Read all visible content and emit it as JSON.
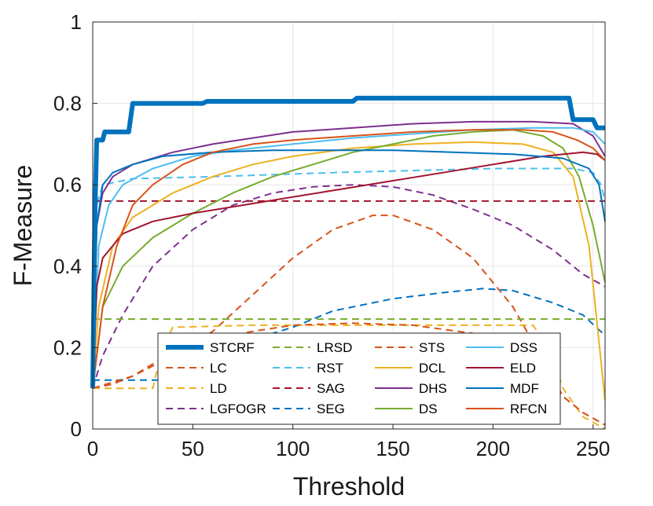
{
  "chart_data": {
    "type": "line",
    "title": "",
    "xlabel": "Threshold",
    "ylabel": "F-Measure",
    "xlim": [
      0,
      256
    ],
    "ylim": [
      0,
      1
    ],
    "grid": true,
    "legend_position": "bottom-center",
    "legend_columns": 4,
    "x_ticks": [
      "0",
      "50",
      "100",
      "150",
      "200",
      "250"
    ],
    "y_ticks": [
      "0",
      "0.2",
      "0.4",
      "0.6",
      "0.8",
      "1"
    ],
    "series": [
      {
        "name": "STCRF",
        "color": "#0072BD",
        "style": "solid",
        "width": 6,
        "points": [
          [
            0,
            0.1
          ],
          [
            1,
            0.5
          ],
          [
            2,
            0.71
          ],
          [
            5,
            0.71
          ],
          [
            6,
            0.73
          ],
          [
            18,
            0.73
          ],
          [
            20,
            0.8
          ],
          [
            55,
            0.8
          ],
          [
            57,
            0.805
          ],
          [
            130,
            0.805
          ],
          [
            132,
            0.813
          ],
          [
            238,
            0.813
          ],
          [
            240,
            0.76
          ],
          [
            250,
            0.76
          ],
          [
            252,
            0.74
          ],
          [
            256,
            0.74
          ]
        ]
      },
      {
        "name": "LC",
        "color": "#D95319",
        "style": "dashed",
        "width": 2,
        "points": [
          [
            0,
            0.1
          ],
          [
            10,
            0.11
          ],
          [
            20,
            0.13
          ],
          [
            40,
            0.18
          ],
          [
            60,
            0.24
          ],
          [
            80,
            0.33
          ],
          [
            100,
            0.42
          ],
          [
            120,
            0.49
          ],
          [
            140,
            0.525
          ],
          [
            150,
            0.525
          ],
          [
            170,
            0.49
          ],
          [
            190,
            0.42
          ],
          [
            210,
            0.3
          ],
          [
            225,
            0.17
          ],
          [
            235,
            0.08
          ],
          [
            245,
            0.04
          ],
          [
            256,
            0.01
          ]
        ]
      },
      {
        "name": "LD",
        "color": "#EDB120",
        "style": "dashed",
        "width": 2,
        "points": [
          [
            0,
            0.1
          ],
          [
            30,
            0.1
          ],
          [
            35,
            0.2
          ],
          [
            40,
            0.25
          ],
          [
            80,
            0.255
          ],
          [
            150,
            0.255
          ],
          [
            200,
            0.255
          ],
          [
            220,
            0.255
          ],
          [
            228,
            0.2
          ],
          [
            235,
            0.1
          ],
          [
            245,
            0.03
          ],
          [
            256,
            0.0
          ]
        ]
      },
      {
        "name": "LGFOGR",
        "color": "#7E2F8E",
        "style": "dashed",
        "width": 2,
        "points": [
          [
            0,
            0.1
          ],
          [
            5,
            0.18
          ],
          [
            15,
            0.28
          ],
          [
            30,
            0.4
          ],
          [
            50,
            0.49
          ],
          [
            70,
            0.55
          ],
          [
            90,
            0.58
          ],
          [
            110,
            0.595
          ],
          [
            130,
            0.6
          ],
          [
            150,
            0.595
          ],
          [
            170,
            0.575
          ],
          [
            190,
            0.54
          ],
          [
            210,
            0.5
          ],
          [
            230,
            0.44
          ],
          [
            245,
            0.38
          ],
          [
            256,
            0.35
          ]
        ]
      },
      {
        "name": "LRSD",
        "color": "#77AC30",
        "style": "dashed",
        "width": 2,
        "points": [
          [
            0,
            0.27
          ],
          [
            256,
            0.27
          ]
        ]
      },
      {
        "name": "RST",
        "color": "#4DBEEE",
        "style": "dashed",
        "width": 2,
        "points": [
          [
            0,
            0.12
          ],
          [
            2,
            0.55
          ],
          [
            5,
            0.6
          ],
          [
            20,
            0.615
          ],
          [
            60,
            0.62
          ],
          [
            120,
            0.63
          ],
          [
            200,
            0.64
          ],
          [
            240,
            0.64
          ],
          [
            250,
            0.63
          ],
          [
            254,
            0.6
          ],
          [
            256,
            0.56
          ]
        ]
      },
      {
        "name": "SAG",
        "color": "#A2142F",
        "style": "dashed",
        "width": 2,
        "points": [
          [
            0,
            0.56
          ],
          [
            256,
            0.56
          ]
        ]
      },
      {
        "name": "SEG",
        "color": "#0072BD",
        "style": "dashed",
        "width": 2,
        "points": [
          [
            0,
            0.12
          ],
          [
            40,
            0.12
          ],
          [
            60,
            0.18
          ],
          [
            80,
            0.22
          ],
          [
            100,
            0.25
          ],
          [
            120,
            0.29
          ],
          [
            150,
            0.32
          ],
          [
            175,
            0.335
          ],
          [
            195,
            0.345
          ],
          [
            210,
            0.34
          ],
          [
            230,
            0.31
          ],
          [
            245,
            0.28
          ],
          [
            256,
            0.23
          ]
        ]
      },
      {
        "name": "STS",
        "color": "#D95319",
        "style": "dashed",
        "width": 2,
        "points": [
          [
            0,
            0.1
          ],
          [
            20,
            0.13
          ],
          [
            40,
            0.19
          ],
          [
            60,
            0.22
          ],
          [
            80,
            0.24
          ],
          [
            100,
            0.255
          ],
          [
            130,
            0.26
          ],
          [
            160,
            0.255
          ],
          [
            190,
            0.235
          ],
          [
            210,
            0.2
          ],
          [
            225,
            0.14
          ],
          [
            235,
            0.08
          ],
          [
            245,
            0.04
          ],
          [
            256,
            0.01
          ]
        ]
      },
      {
        "name": "DCL",
        "color": "#EDB120",
        "style": "solid",
        "width": 2,
        "points": [
          [
            0,
            0.1
          ],
          [
            3,
            0.3
          ],
          [
            10,
            0.45
          ],
          [
            20,
            0.52
          ],
          [
            40,
            0.58
          ],
          [
            60,
            0.62
          ],
          [
            80,
            0.65
          ],
          [
            100,
            0.67
          ],
          [
            130,
            0.69
          ],
          [
            160,
            0.7
          ],
          [
            190,
            0.705
          ],
          [
            215,
            0.7
          ],
          [
            230,
            0.68
          ],
          [
            240,
            0.62
          ],
          [
            248,
            0.45
          ],
          [
            256,
            0.07
          ]
        ]
      },
      {
        "name": "DHS",
        "color": "#7E2F8E",
        "style": "solid",
        "width": 2,
        "points": [
          [
            0,
            0.1
          ],
          [
            2,
            0.5
          ],
          [
            5,
            0.58
          ],
          [
            10,
            0.62
          ],
          [
            20,
            0.65
          ],
          [
            40,
            0.68
          ],
          [
            60,
            0.7
          ],
          [
            80,
            0.715
          ],
          [
            100,
            0.73
          ],
          [
            130,
            0.74
          ],
          [
            160,
            0.75
          ],
          [
            190,
            0.755
          ],
          [
            220,
            0.755
          ],
          [
            240,
            0.75
          ],
          [
            250,
            0.72
          ],
          [
            256,
            0.67
          ]
        ]
      },
      {
        "name": "DS",
        "color": "#77AC30",
        "style": "solid",
        "width": 2,
        "points": [
          [
            0,
            0.1
          ],
          [
            5,
            0.3
          ],
          [
            15,
            0.4
          ],
          [
            30,
            0.47
          ],
          [
            50,
            0.53
          ],
          [
            70,
            0.58
          ],
          [
            90,
            0.62
          ],
          [
            110,
            0.65
          ],
          [
            130,
            0.68
          ],
          [
            150,
            0.7
          ],
          [
            170,
            0.72
          ],
          [
            190,
            0.73
          ],
          [
            210,
            0.735
          ],
          [
            225,
            0.72
          ],
          [
            235,
            0.69
          ],
          [
            243,
            0.62
          ],
          [
            250,
            0.5
          ],
          [
            256,
            0.36
          ]
        ]
      },
      {
        "name": "DSS",
        "color": "#4DBEEE",
        "style": "solid",
        "width": 2,
        "points": [
          [
            0,
            0.1
          ],
          [
            3,
            0.45
          ],
          [
            8,
            0.55
          ],
          [
            15,
            0.6
          ],
          [
            30,
            0.64
          ],
          [
            50,
            0.67
          ],
          [
            70,
            0.685
          ],
          [
            100,
            0.7
          ],
          [
            130,
            0.715
          ],
          [
            160,
            0.725
          ],
          [
            190,
            0.735
          ],
          [
            220,
            0.74
          ],
          [
            240,
            0.74
          ],
          [
            250,
            0.73
          ],
          [
            256,
            0.7
          ]
        ]
      },
      {
        "name": "ELD",
        "color": "#A2142F",
        "style": "solid",
        "width": 2,
        "points": [
          [
            0,
            0.1
          ],
          [
            2,
            0.35
          ],
          [
            5,
            0.42
          ],
          [
            15,
            0.48
          ],
          [
            30,
            0.51
          ],
          [
            50,
            0.53
          ],
          [
            75,
            0.55
          ],
          [
            100,
            0.57
          ],
          [
            125,
            0.59
          ],
          [
            150,
            0.61
          ],
          [
            175,
            0.63
          ],
          [
            200,
            0.65
          ],
          [
            225,
            0.67
          ],
          [
            245,
            0.68
          ],
          [
            252,
            0.675
          ],
          [
            256,
            0.66
          ]
        ]
      },
      {
        "name": "MDF",
        "color": "#0072BD",
        "style": "solid",
        "width": 2,
        "points": [
          [
            0,
            0.1
          ],
          [
            2,
            0.5
          ],
          [
            5,
            0.6
          ],
          [
            10,
            0.63
          ],
          [
            20,
            0.65
          ],
          [
            35,
            0.67
          ],
          [
            60,
            0.68
          ],
          [
            90,
            0.685
          ],
          [
            120,
            0.685
          ],
          [
            150,
            0.685
          ],
          [
            180,
            0.68
          ],
          [
            210,
            0.675
          ],
          [
            235,
            0.665
          ],
          [
            248,
            0.64
          ],
          [
            253,
            0.6
          ],
          [
            256,
            0.51
          ]
        ]
      },
      {
        "name": "RFCN",
        "color": "#D95319",
        "style": "solid",
        "width": 2,
        "points": [
          [
            0,
            0.1
          ],
          [
            5,
            0.3
          ],
          [
            12,
            0.45
          ],
          [
            20,
            0.55
          ],
          [
            30,
            0.6
          ],
          [
            45,
            0.65
          ],
          [
            60,
            0.68
          ],
          [
            80,
            0.7
          ],
          [
            100,
            0.71
          ],
          [
            130,
            0.72
          ],
          [
            160,
            0.73
          ],
          [
            190,
            0.735
          ],
          [
            215,
            0.735
          ],
          [
            230,
            0.73
          ],
          [
            242,
            0.71
          ],
          [
            250,
            0.69
          ],
          [
            256,
            0.66
          ]
        ]
      }
    ]
  }
}
